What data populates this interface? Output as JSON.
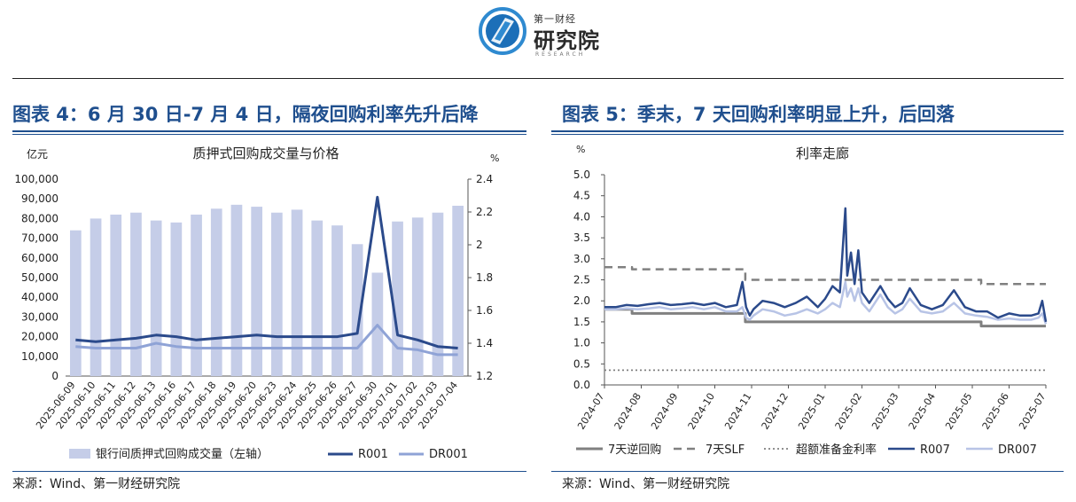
{
  "header": {
    "logo_small": "第一财经",
    "logo_big": "研究院",
    "logo_sub": "RESEARCH"
  },
  "panels": [
    {
      "title": "图表 4：6 月 30 日-7 月 4 日，隔夜回购利率先升后降",
      "source": "来源：Wind、第一财经研究院"
    },
    {
      "title": "图表 5：季末，7 天回购利率明显上升，后回落",
      "source": "来源：Wind、第一财经研究院"
    }
  ],
  "colors": {
    "title_blue": "#1f4f8e",
    "bar": "#c5cde8",
    "r_series": "#2b4a8b",
    "dr_series": "#8fa3d6",
    "dr_light": "#b8c4e6",
    "reverse_repo": "#808080",
    "slf": "#808080",
    "excess_reserve": "#808080"
  },
  "chart_data": [
    {
      "type": "bar",
      "title": "质押式回购成交量与价格",
      "y_left_unit": "亿元",
      "y_right_unit": "%",
      "categories": [
        "2025-06-09",
        "2025-06-10",
        "2025-06-11",
        "2025-06-12",
        "2025-06-13",
        "2025-06-16",
        "2025-06-17",
        "2025-06-18",
        "2025-06-19",
        "2025-06-20",
        "2025-06-23",
        "2025-06-24",
        "2025-06-25",
        "2025-06-26",
        "2025-06-27",
        "2025-06-30",
        "2025-07-01",
        "2025-07-02",
        "2025-07-03",
        "2025-07-04"
      ],
      "ylim_left": [
        0,
        100000
      ],
      "yticks_left": [
        "0",
        "10,000",
        "20,000",
        "30,000",
        "40,000",
        "50,000",
        "60,000",
        "70,000",
        "80,000",
        "90,000",
        "100,000"
      ],
      "ylim_right": [
        1.2,
        2.4
      ],
      "yticks_right": [
        "1.2",
        "1.4",
        "1.6",
        "1.8",
        "2",
        "2.2",
        "2.4"
      ],
      "series": [
        {
          "name": "银行间质押式回购成交量（左轴）",
          "kind": "bar",
          "axis": "left",
          "values": [
            74000,
            80000,
            82000,
            83000,
            79000,
            78000,
            82000,
            85000,
            87000,
            86000,
            83000,
            84500,
            79000,
            76500,
            67000,
            52500,
            78500,
            80500,
            83000,
            86500
          ]
        },
        {
          "name": "R001",
          "kind": "line",
          "axis": "right",
          "values": [
            1.42,
            1.41,
            1.42,
            1.43,
            1.45,
            1.44,
            1.42,
            1.43,
            1.44,
            1.45,
            1.44,
            1.44,
            1.44,
            1.44,
            1.46,
            2.29,
            1.45,
            1.42,
            1.38,
            1.37
          ]
        },
        {
          "name": "DR001",
          "kind": "line",
          "axis": "right",
          "values": [
            1.38,
            1.37,
            1.37,
            1.37,
            1.4,
            1.38,
            1.37,
            1.37,
            1.37,
            1.37,
            1.37,
            1.37,
            1.37,
            1.37,
            1.37,
            1.51,
            1.37,
            1.36,
            1.33,
            1.33
          ]
        }
      ],
      "legend_position": "bottom"
    },
    {
      "type": "line",
      "title": "利率走廊",
      "y_unit": "%",
      "ylim": [
        0,
        5
      ],
      "yticks": [
        "0.0",
        "0.5",
        "1.0",
        "1.5",
        "2.0",
        "2.5",
        "3.0",
        "3.5",
        "4.0",
        "4.5",
        "5.0"
      ],
      "xticks": [
        "2024-07",
        "2024-08",
        "2024-09",
        "2024-10",
        "2024-11",
        "2024-12",
        "2025-01",
        "2025-02",
        "2025-03",
        "2025-04",
        "2025-05",
        "2025-06",
        "2025-07"
      ],
      "x_range": [
        0,
        12
      ],
      "series": [
        {
          "name": "7天逆回购",
          "style": "solid-gray",
          "x": [
            0,
            0.75,
            0.75,
            3.83,
            3.83,
            10.24,
            10.24,
            12
          ],
          "y": [
            1.8,
            1.8,
            1.7,
            1.7,
            1.5,
            1.5,
            1.4,
            1.4
          ]
        },
        {
          "name": "7天SLF",
          "style": "dashed-gray",
          "x": [
            0,
            0.75,
            0.75,
            3.83,
            3.83,
            10.24,
            10.24,
            12
          ],
          "y": [
            2.8,
            2.8,
            2.75,
            2.75,
            2.5,
            2.5,
            2.4,
            2.4
          ]
        },
        {
          "name": "超额准备金利率",
          "style": "dotted-gray",
          "x": [
            0,
            12
          ],
          "y": [
            0.35,
            0.35
          ]
        },
        {
          "name": "R007",
          "style": "solid-dark-blue",
          "x": [
            0,
            0.3,
            0.6,
            0.9,
            1.2,
            1.5,
            1.8,
            2.1,
            2.4,
            2.7,
            3.0,
            3.3,
            3.6,
            3.75,
            3.85,
            3.95,
            4.05,
            4.3,
            4.6,
            4.9,
            5.2,
            5.5,
            5.8,
            6.0,
            6.2,
            6.4,
            6.55,
            6.6,
            6.7,
            6.8,
            6.9,
            7.0,
            7.2,
            7.5,
            7.7,
            7.9,
            8.1,
            8.3,
            8.6,
            8.9,
            9.2,
            9.5,
            9.8,
            10.1,
            10.4,
            10.7,
            11.0,
            11.3,
            11.6,
            11.8,
            11.9,
            12.0
          ],
          "y": [
            1.85,
            1.85,
            1.9,
            1.88,
            1.92,
            1.95,
            1.9,
            1.92,
            1.95,
            1.9,
            1.95,
            1.85,
            1.9,
            2.45,
            1.85,
            1.65,
            1.8,
            2.0,
            1.95,
            1.85,
            1.95,
            2.1,
            1.85,
            2.05,
            2.35,
            2.2,
            4.2,
            2.6,
            3.15,
            2.4,
            3.2,
            2.2,
            1.95,
            2.35,
            2.05,
            1.85,
            1.95,
            2.3,
            1.9,
            1.8,
            1.9,
            2.25,
            1.85,
            1.75,
            1.75,
            1.6,
            1.7,
            1.65,
            1.65,
            1.7,
            2.0,
            1.5
          ]
        },
        {
          "name": "DR007",
          "style": "solid-light-blue",
          "x": [
            0,
            0.3,
            0.6,
            0.9,
            1.2,
            1.5,
            1.8,
            2.1,
            2.4,
            2.7,
            3.0,
            3.3,
            3.6,
            3.75,
            3.85,
            3.95,
            4.05,
            4.3,
            4.6,
            4.9,
            5.2,
            5.5,
            5.8,
            6.0,
            6.2,
            6.4,
            6.55,
            6.6,
            6.7,
            6.8,
            6.9,
            7.0,
            7.2,
            7.5,
            7.7,
            7.9,
            8.1,
            8.3,
            8.6,
            8.9,
            9.2,
            9.5,
            9.8,
            10.1,
            10.4,
            10.7,
            11.0,
            11.3,
            11.6,
            11.8,
            11.9,
            12.0
          ],
          "y": [
            1.8,
            1.8,
            1.82,
            1.8,
            1.82,
            1.85,
            1.8,
            1.82,
            1.85,
            1.8,
            1.85,
            1.75,
            1.75,
            1.85,
            1.6,
            1.55,
            1.65,
            1.8,
            1.75,
            1.65,
            1.7,
            1.8,
            1.7,
            1.8,
            1.95,
            1.85,
            2.45,
            2.1,
            2.3,
            2.0,
            2.3,
            1.95,
            1.75,
            2.15,
            1.85,
            1.7,
            1.8,
            2.05,
            1.75,
            1.7,
            1.75,
            1.95,
            1.7,
            1.65,
            1.62,
            1.55,
            1.58,
            1.55,
            1.55,
            1.6,
            1.7,
            1.45
          ]
        }
      ],
      "legend_position": "bottom"
    }
  ]
}
